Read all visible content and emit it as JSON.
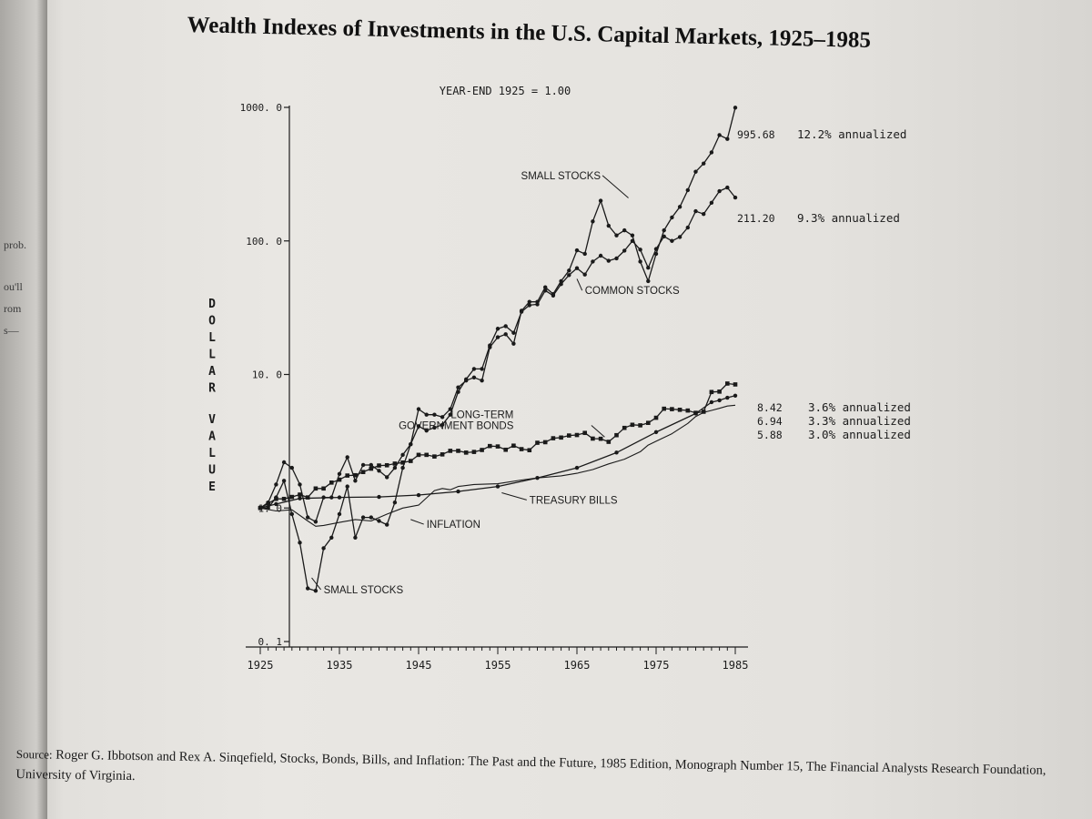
{
  "page": {
    "title": "Wealth Indexes of Investments in the U.S. Capital Markets, 1925–1985",
    "source_prefix": "Source:",
    "source_text": "Roger G. Ibbotson and Rex A. Sinqefield, Stocks, Bonds, Bills, and Inflation: The Past and the Future, 1985 Edition, Monograph Number 15, The Financial Analysts Research Foundation, University of Virginia.",
    "left_page_fragments": [
      "prob.",
      "ou'll",
      "rom",
      "s—"
    ]
  },
  "chart_data": {
    "type": "line",
    "subtitle": "YEAR-END 1925 = 1.00",
    "ylabel": "DOLLAR VALUE",
    "yscale": "log",
    "ylim": [
      0.1,
      1000
    ],
    "xlim": [
      1925,
      1985
    ],
    "y_ticks": [
      "1000. 0",
      "100. 0",
      "10. 0",
      "1. 0",
      "0. 1"
    ],
    "y_tick_values": [
      1000,
      100,
      10,
      1,
      0.1
    ],
    "x_ticks": [
      "1925",
      "1935",
      "1945",
      "1955",
      "1965",
      "1975",
      "1985"
    ],
    "x_tick_values": [
      1925,
      1935,
      1945,
      1955,
      1965,
      1975,
      1985
    ],
    "series": [
      {
        "name": "SMALL STOCKS",
        "marker": "dot",
        "end_value": "995.68",
        "annualized": "12.2% annualized",
        "points": [
          [
            1925,
            1
          ],
          [
            1926,
            1.0
          ],
          [
            1927,
            1.2
          ],
          [
            1928,
            1.6
          ],
          [
            1929,
            0.9
          ],
          [
            1930,
            0.55
          ],
          [
            1931,
            0.25
          ],
          [
            1932,
            0.24
          ],
          [
            1933,
            0.5
          ],
          [
            1934,
            0.6
          ],
          [
            1935,
            0.9
          ],
          [
            1936,
            1.45
          ],
          [
            1937,
            0.6
          ],
          [
            1938,
            0.85
          ],
          [
            1939,
            0.85
          ],
          [
            1940,
            0.8
          ],
          [
            1941,
            0.75
          ],
          [
            1942,
            1.1
          ],
          [
            1943,
            2.0
          ],
          [
            1944,
            3.0
          ],
          [
            1945,
            5.5
          ],
          [
            1946,
            5.0
          ],
          [
            1947,
            5.0
          ],
          [
            1948,
            4.8
          ],
          [
            1949,
            5.5
          ],
          [
            1950,
            8.0
          ],
          [
            1951,
            9.0
          ],
          [
            1952,
            9.5
          ],
          [
            1953,
            9.0
          ],
          [
            1954,
            16.0
          ],
          [
            1955,
            19.0
          ],
          [
            1956,
            20.0
          ],
          [
            1957,
            17.0
          ],
          [
            1958,
            30.0
          ],
          [
            1959,
            35.0
          ],
          [
            1960,
            35.0
          ],
          [
            1961,
            45.0
          ],
          [
            1962,
            40.0
          ],
          [
            1963,
            50.0
          ],
          [
            1964,
            60.0
          ],
          [
            1965,
            85.0
          ],
          [
            1966,
            80.0
          ],
          [
            1967,
            140.0
          ],
          [
            1968,
            200.0
          ],
          [
            1969,
            130.0
          ],
          [
            1970,
            110.0
          ],
          [
            1971,
            120.0
          ],
          [
            1972,
            110.0
          ],
          [
            1973,
            70.0
          ],
          [
            1974,
            50.0
          ],
          [
            1975,
            80.0
          ],
          [
            1976,
            120.0
          ],
          [
            1977,
            150.0
          ],
          [
            1978,
            180.0
          ],
          [
            1979,
            240.0
          ],
          [
            1980,
            330.0
          ],
          [
            1981,
            380.0
          ],
          [
            1982,
            460.0
          ],
          [
            1983,
            620.0
          ],
          [
            1984,
            580.0
          ],
          [
            1985,
            995.68
          ]
        ]
      },
      {
        "name": "COMMON STOCKS",
        "marker": "dot",
        "end_value": "211.20",
        "annualized": "9.3% annualized",
        "points": [
          [
            1925,
            1
          ],
          [
            1926,
            1.1
          ],
          [
            1927,
            1.5
          ],
          [
            1928,
            2.2
          ],
          [
            1929,
            2.0
          ],
          [
            1930,
            1.5
          ],
          [
            1931,
            0.85
          ],
          [
            1932,
            0.79
          ],
          [
            1933,
            1.2
          ],
          [
            1934,
            1.2
          ],
          [
            1935,
            1.8
          ],
          [
            1936,
            2.4
          ],
          [
            1937,
            1.6
          ],
          [
            1938,
            2.1
          ],
          [
            1939,
            2.1
          ],
          [
            1940,
            1.9
          ],
          [
            1941,
            1.7
          ],
          [
            1942,
            2.0
          ],
          [
            1943,
            2.5
          ],
          [
            1944,
            3.0
          ],
          [
            1945,
            4.1
          ],
          [
            1946,
            3.8
          ],
          [
            1947,
            4.0
          ],
          [
            1948,
            4.2
          ],
          [
            1949,
            5.0
          ],
          [
            1950,
            7.4
          ],
          [
            1951,
            9.2
          ],
          [
            1952,
            11.0
          ],
          [
            1953,
            11.0
          ],
          [
            1954,
            16.5
          ],
          [
            1955,
            22.0
          ],
          [
            1956,
            23.0
          ],
          [
            1957,
            20.5
          ],
          [
            1958,
            29.5
          ],
          [
            1959,
            33.0
          ],
          [
            1960,
            33.5
          ],
          [
            1961,
            42.5
          ],
          [
            1962,
            39.0
          ],
          [
            1963,
            47.5
          ],
          [
            1964,
            55.5
          ],
          [
            1965,
            62.5
          ],
          [
            1966,
            56.0
          ],
          [
            1967,
            70.0
          ],
          [
            1968,
            77.5
          ],
          [
            1969,
            71.0
          ],
          [
            1970,
            74.0
          ],
          [
            1971,
            84.5
          ],
          [
            1972,
            100.0
          ],
          [
            1973,
            86.0
          ],
          [
            1974,
            63.0
          ],
          [
            1975,
            87.0
          ],
          [
            1976,
            108.0
          ],
          [
            1977,
            100.0
          ],
          [
            1978,
            107.0
          ],
          [
            1979,
            126.0
          ],
          [
            1980,
            167.0
          ],
          [
            1981,
            159.0
          ],
          [
            1982,
            193.0
          ],
          [
            1983,
            236.0
          ],
          [
            1984,
            251.0
          ],
          [
            1985,
            211.2
          ]
        ]
      },
      {
        "name": "LONG-TERM GOVERNMENT BONDS",
        "marker": "square",
        "end_value": "8.42",
        "annualized": "3.6% annualized",
        "points": [
          [
            1925,
            1
          ],
          [
            1926,
            1.08
          ],
          [
            1927,
            1.17
          ],
          [
            1928,
            1.17
          ],
          [
            1929,
            1.21
          ],
          [
            1930,
            1.26
          ],
          [
            1931,
            1.2
          ],
          [
            1932,
            1.4
          ],
          [
            1933,
            1.4
          ],
          [
            1934,
            1.55
          ],
          [
            1935,
            1.63
          ],
          [
            1936,
            1.75
          ],
          [
            1937,
            1.76
          ],
          [
            1938,
            1.86
          ],
          [
            1939,
            1.97
          ],
          [
            1940,
            2.08
          ],
          [
            1941,
            2.09
          ],
          [
            1942,
            2.15
          ],
          [
            1943,
            2.19
          ],
          [
            1944,
            2.25
          ],
          [
            1945,
            2.5
          ],
          [
            1946,
            2.5
          ],
          [
            1947,
            2.43
          ],
          [
            1948,
            2.52
          ],
          [
            1949,
            2.68
          ],
          [
            1950,
            2.68
          ],
          [
            1951,
            2.6
          ],
          [
            1952,
            2.63
          ],
          [
            1953,
            2.72
          ],
          [
            1954,
            2.91
          ],
          [
            1955,
            2.89
          ],
          [
            1956,
            2.73
          ],
          [
            1957,
            2.93
          ],
          [
            1958,
            2.76
          ],
          [
            1959,
            2.71
          ],
          [
            1960,
            3.08
          ],
          [
            1961,
            3.11
          ],
          [
            1962,
            3.33
          ],
          [
            1963,
            3.37
          ],
          [
            1964,
            3.49
          ],
          [
            1965,
            3.52
          ],
          [
            1966,
            3.65
          ],
          [
            1967,
            3.31
          ],
          [
            1968,
            3.3
          ],
          [
            1969,
            3.13
          ],
          [
            1970,
            3.51
          ],
          [
            1971,
            3.98
          ],
          [
            1972,
            4.2
          ],
          [
            1973,
            4.16
          ],
          [
            1974,
            4.34
          ],
          [
            1975,
            4.74
          ],
          [
            1976,
            5.54
          ],
          [
            1977,
            5.5
          ],
          [
            1978,
            5.44
          ],
          [
            1979,
            5.37
          ],
          [
            1980,
            5.16
          ],
          [
            1981,
            5.26
          ],
          [
            1982,
            7.39
          ],
          [
            1983,
            7.44
          ],
          [
            1984,
            8.55
          ],
          [
            1985,
            8.42
          ]
        ]
      },
      {
        "name": "TREASURY BILLS",
        "marker": "dot",
        "end_value": "6.94",
        "annualized": "3.3% annualized",
        "points": [
          [
            1925,
            1
          ],
          [
            1927,
            1.07
          ],
          [
            1930,
            1.18
          ],
          [
            1935,
            1.2
          ],
          [
            1940,
            1.21
          ],
          [
            1945,
            1.25
          ],
          [
            1950,
            1.33
          ],
          [
            1955,
            1.45
          ],
          [
            1960,
            1.68
          ],
          [
            1965,
            2.0
          ],
          [
            1970,
            2.6
          ],
          [
            1975,
            3.7
          ],
          [
            1980,
            5.1
          ],
          [
            1982,
            6.2
          ],
          [
            1983,
            6.4
          ],
          [
            1984,
            6.7
          ],
          [
            1985,
            6.94
          ]
        ]
      },
      {
        "name": "INFLATION",
        "marker": "none",
        "end_value": "5.88",
        "annualized": "3.0% annualized",
        "points": [
          [
            1925,
            1
          ],
          [
            1927,
            0.95
          ],
          [
            1929,
            0.97
          ],
          [
            1931,
            0.8
          ],
          [
            1932,
            0.73
          ],
          [
            1933,
            0.74
          ],
          [
            1935,
            0.78
          ],
          [
            1937,
            0.82
          ],
          [
            1939,
            0.8
          ],
          [
            1941,
            0.9
          ],
          [
            1943,
            1.0
          ],
          [
            1945,
            1.05
          ],
          [
            1947,
            1.35
          ],
          [
            1948,
            1.4
          ],
          [
            1949,
            1.37
          ],
          [
            1950,
            1.45
          ],
          [
            1952,
            1.5
          ],
          [
            1955,
            1.52
          ],
          [
            1958,
            1.62
          ],
          [
            1960,
            1.68
          ],
          [
            1963,
            1.74
          ],
          [
            1965,
            1.82
          ],
          [
            1967,
            1.94
          ],
          [
            1969,
            2.14
          ],
          [
            1971,
            2.32
          ],
          [
            1973,
            2.64
          ],
          [
            1974,
            2.96
          ],
          [
            1975,
            3.16
          ],
          [
            1977,
            3.6
          ],
          [
            1979,
            4.3
          ],
          [
            1980,
            4.84
          ],
          [
            1981,
            5.2
          ],
          [
            1982,
            5.38
          ],
          [
            1983,
            5.58
          ],
          [
            1984,
            5.8
          ],
          [
            1985,
            5.88
          ]
        ]
      }
    ],
    "annotations": [
      {
        "text": "SMALL STOCKS",
        "series": "SMALL STOCKS",
        "at": [
          1968,
          290
        ]
      },
      {
        "text": "COMMON STOCKS",
        "series": "COMMON STOCKS",
        "at": [
          1966,
          40
        ]
      },
      {
        "text": "LONG-TERM",
        "series": "LONG-TERM GOVERNMENT BONDS",
        "at": [
          1957,
          4.7
        ]
      },
      {
        "text": "GOVERNMENT BONDS",
        "series": "LONG-TERM GOVERNMENT BONDS",
        "at": [
          1957,
          3.9
        ]
      },
      {
        "text": "TREASURY BILLS",
        "series": "TREASURY BILLS",
        "at": [
          1959,
          1.08
        ]
      },
      {
        "text": "INFLATION",
        "series": "INFLATION",
        "at": [
          1946,
          0.71
        ]
      },
      {
        "text": "SMALL STOCKS",
        "series": "SMALL STOCKS",
        "at": [
          1933,
          0.23
        ]
      }
    ]
  }
}
